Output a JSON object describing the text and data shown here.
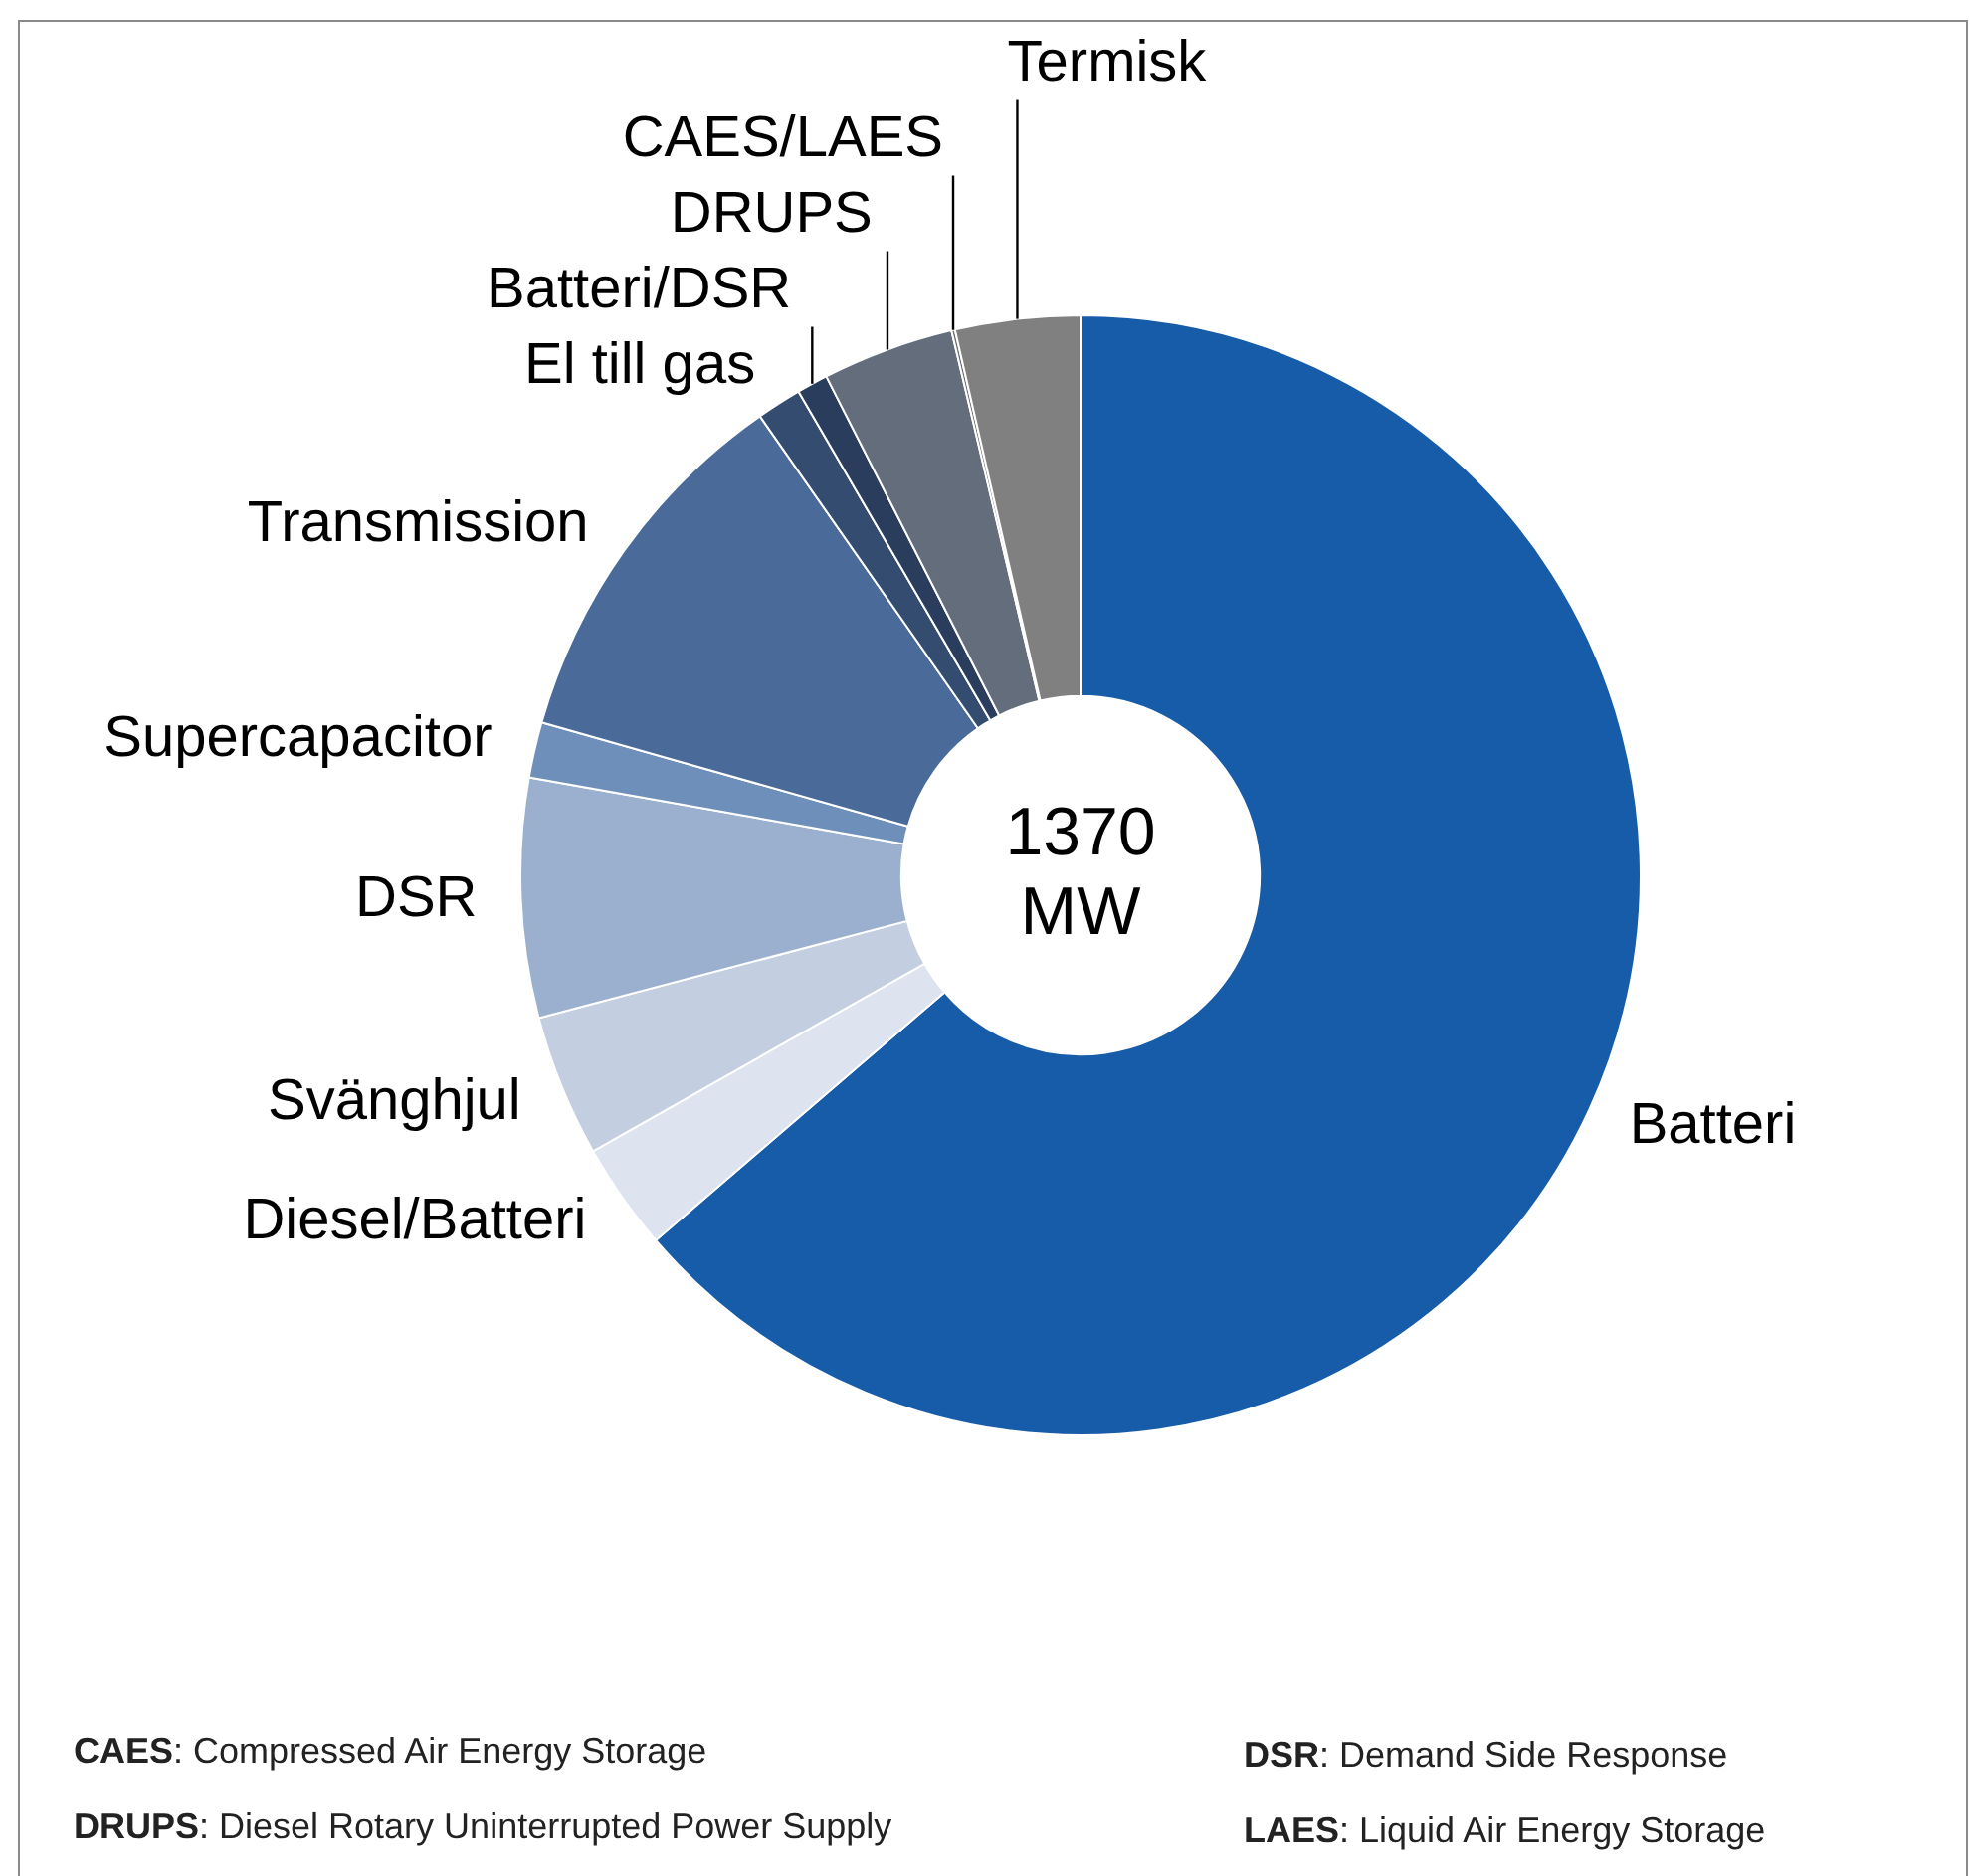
{
  "chart_data": {
    "type": "donut",
    "title": "1370 MW",
    "categories": [
      "Batteri",
      "Diesel/Batteri",
      "Svänghjul",
      "DSR",
      "Supercapacitor",
      "Transmission",
      "El till gas",
      "Batteri/DSR",
      "DRUPS",
      "CAES/LAES",
      "Termisk"
    ],
    "values": [
      63.7,
      3.1,
      4.1,
      6.9,
      1.6,
      10.9,
      1.3,
      0.9,
      3.8,
      0.1,
      3.6
    ],
    "colors": [
      "#175ca8",
      "#dde4ef",
      "#c3cee0",
      "#9bb0cf",
      "#6f8fbb",
      "#4a6a9a",
      "#344c70",
      "#2a3d5c",
      "#636d7b",
      "#707070",
      "#808080"
    ],
    "legend": false,
    "annotations": [
      "CAES: Compressed Air Energy Storage",
      "DRUPS: Diesel Rotary Uninterrupted Power Supply",
      "DSR: Demand Side Response",
      "LAES: Liquid Air Energy Storage"
    ]
  }
}
